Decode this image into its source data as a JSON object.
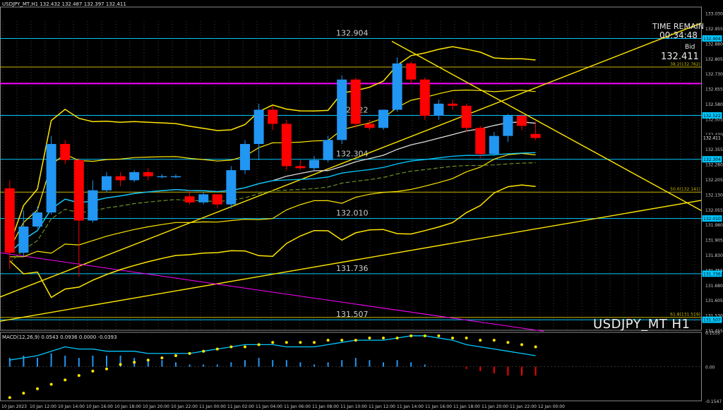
{
  "symbol_header": "USDJPY_MT,H1  132.432 132.487 132.397 132.411",
  "time_remain_title": "TIME REMAIN",
  "time_remain_value": "00:34:48",
  "bid_label": "Bid",
  "bid_value": "132.411",
  "watermark": "USDJPY_MT H1",
  "macd_label": "MACD(12,26,9) 0.0543 0.0936 0.0000 -0.0393",
  "colors": {
    "up": "#2196f3",
    "down": "#ff0000",
    "bb": "#ffe600",
    "cyan": "#00c8ff",
    "magenta": "#ff00ff",
    "fib": "#c8b400"
  },
  "level_labels": [
    {
      "text": "132.904",
      "price": 132.904
    },
    {
      "text": "132.522",
      "price": 132.522
    },
    {
      "text": "132.304",
      "price": 132.304
    },
    {
      "text": "132.010",
      "price": 132.01
    },
    {
      "text": "131.736",
      "price": 131.736
    },
    {
      "text": "131.507",
      "price": 131.507
    }
  ],
  "fib_labels": [
    {
      "text": "38.2(132.762)",
      "price": 132.762
    },
    {
      "text": "50.0(132.141)",
      "price": 132.141
    },
    {
      "text": "61.8(131.519)",
      "price": 131.519
    }
  ],
  "price_axis": [
    "133.030",
    "132.955",
    "132.880",
    "132.805",
    "132.730",
    "132.655",
    "132.580",
    "132.505",
    "132.430",
    "132.355",
    "132.280",
    "132.205",
    "132.130",
    "132.055",
    "131.980",
    "131.905",
    "131.830",
    "131.755",
    "131.680",
    "131.605",
    "131.530",
    "131.455"
  ],
  "axis_tags": [
    {
      "text": "132.904",
      "price": 132.904
    },
    {
      "text": "132.522",
      "price": 132.522
    },
    {
      "text": "132.411",
      "price": 132.411
    },
    {
      "text": "132.304",
      "price": 132.304
    },
    {
      "text": "132.010",
      "price": 132.01
    },
    {
      "text": "131.736",
      "price": 131.736
    },
    {
      "text": "131.507",
      "price": 131.507
    }
  ],
  "macd_axis": [
    "0.1555",
    "0.00",
    "-0.1547"
  ],
  "time_axis": [
    "10 Jan 2023",
    "10 Jan 12:00",
    "10 Jan 14:00",
    "10 Jan 16:00",
    "10 Jan 18:00",
    "10 Jan 20:00",
    "10 Jan 22:00",
    "11 Jan 00:00",
    "11 Jan 02:00",
    "11 Jan 04:00",
    "11 Jan 06:00",
    "11 Jan 08:00",
    "11 Jan 10:00",
    "11 Jan 12:00",
    "11 Jan 14:00",
    "11 Jan 16:00",
    "11 Jan 18:00",
    "11 Jan 20:00",
    "11 Jan 22:00",
    "12 Jan 00:00"
  ],
  "chart_data": {
    "type": "candlestick",
    "candles": [
      {
        "o": 132.16,
        "h": 132.2,
        "c": 131.84,
        "l": 131.76
      },
      {
        "o": 131.84,
        "h": 132.05,
        "c": 131.97,
        "l": 131.82
      },
      {
        "o": 131.97,
        "h": 132.07,
        "c": 132.04,
        "l": 131.96
      },
      {
        "o": 132.04,
        "h": 132.42,
        "c": 132.38,
        "l": 132.03
      },
      {
        "o": 132.38,
        "h": 132.4,
        "c": 132.3,
        "l": 132.28
      },
      {
        "o": 132.3,
        "h": 132.31,
        "c": 132.0,
        "l": 131.72
      },
      {
        "o": 132.0,
        "h": 132.2,
        "c": 132.15,
        "l": 131.99
      },
      {
        "o": 132.15,
        "h": 132.24,
        "c": 132.22,
        "l": 132.14
      },
      {
        "o": 132.22,
        "h": 132.24,
        "c": 132.2,
        "l": 132.17
      },
      {
        "o": 132.2,
        "h": 132.25,
        "c": 132.24,
        "l": 132.19
      },
      {
        "o": 132.24,
        "h": 132.26,
        "c": 132.22,
        "l": 132.2
      },
      {
        "o": 132.22,
        "h": 132.23,
        "c": 132.22,
        "l": 132.21
      },
      {
        "o": 132.22,
        "h": 132.23,
        "c": 132.22,
        "l": 132.21
      },
      {
        "o": 132.12,
        "h": 132.15,
        "c": 132.09,
        "l": 132.08
      },
      {
        "o": 132.09,
        "h": 132.14,
        "c": 132.13,
        "l": 132.08
      },
      {
        "o": 132.13,
        "h": 132.12,
        "c": 132.08,
        "l": 132.06
      },
      {
        "o": 132.08,
        "h": 132.27,
        "c": 132.25,
        "l": 132.06
      },
      {
        "o": 132.25,
        "h": 132.4,
        "c": 132.38,
        "l": 132.23
      },
      {
        "o": 132.38,
        "h": 132.58,
        "c": 132.55,
        "l": 132.3
      },
      {
        "o": 132.55,
        "h": 132.57,
        "c": 132.48,
        "l": 132.45
      },
      {
        "o": 132.48,
        "h": 132.5,
        "c": 132.27,
        "l": 132.25
      },
      {
        "o": 132.27,
        "h": 132.3,
        "c": 132.26,
        "l": 132.25
      },
      {
        "o": 132.26,
        "h": 132.32,
        "c": 132.3,
        "l": 132.25
      },
      {
        "o": 132.3,
        "h": 132.42,
        "c": 132.4,
        "l": 132.29
      },
      {
        "o": 132.4,
        "h": 132.72,
        "c": 132.7,
        "l": 132.38
      },
      {
        "o": 132.7,
        "h": 132.71,
        "c": 132.48,
        "l": 132.46
      },
      {
        "o": 132.48,
        "h": 132.5,
        "c": 132.46,
        "l": 132.45
      },
      {
        "o": 132.46,
        "h": 132.55,
        "c": 132.55,
        "l": 132.45
      },
      {
        "o": 132.55,
        "h": 132.81,
        "c": 132.78,
        "l": 132.54
      },
      {
        "o": 132.78,
        "h": 132.79,
        "c": 132.7,
        "l": 132.68
      },
      {
        "o": 132.7,
        "h": 132.71,
        "c": 132.52,
        "l": 132.5
      },
      {
        "o": 132.52,
        "h": 132.6,
        "c": 132.58,
        "l": 132.5
      },
      {
        "o": 132.58,
        "h": 132.6,
        "c": 132.57,
        "l": 132.55
      },
      {
        "o": 132.57,
        "h": 132.58,
        "c": 132.46,
        "l": 132.44
      },
      {
        "o": 132.46,
        "h": 132.47,
        "c": 132.33,
        "l": 132.31
      },
      {
        "o": 132.33,
        "h": 132.44,
        "c": 132.42,
        "l": 132.32
      },
      {
        "o": 132.42,
        "h": 132.53,
        "c": 132.52,
        "l": 132.39
      },
      {
        "o": 132.52,
        "h": 132.53,
        "c": 132.47,
        "l": 132.45
      },
      {
        "o": 132.43,
        "h": 132.49,
        "c": 132.41,
        "l": 132.4
      }
    ],
    "macd_hist": [
      0.04,
      0.05,
      0.04,
      0.06,
      0.05,
      0.04,
      0.05,
      0.05,
      0.05,
      0.04,
      0.03,
      0.03,
      0.02,
      0.01,
      0.01,
      0.01,
      0.02,
      0.03,
      0.04,
      0.03,
      0.03,
      0.02,
      0.01,
      0.02,
      0.03,
      0.04,
      0.03,
      0.02,
      0.03,
      0.02,
      0.01,
      0.0,
      0.0,
      -0.01,
      -0.02,
      -0.03,
      -0.04,
      -0.04,
      -0.04
    ],
    "macd_signal": [
      -0.14,
      -0.12,
      -0.1,
      -0.08,
      -0.06,
      -0.04,
      -0.02,
      -0.01,
      0.01,
      0.02,
      0.03,
      0.04,
      0.05,
      0.06,
      0.07,
      0.08,
      0.09,
      0.09,
      0.1,
      0.11,
      0.11,
      0.11,
      0.11,
      0.12,
      0.12,
      0.12,
      0.13,
      0.13,
      0.13,
      0.14,
      0.14,
      0.14,
      0.13,
      0.13,
      0.12,
      0.12,
      0.11,
      0.1,
      0.09
    ],
    "macd_line": [
      0.03,
      0.04,
      0.05,
      0.07,
      0.09,
      0.08,
      0.08,
      0.07,
      0.07,
      0.07,
      0.06,
      0.06,
      0.06,
      0.06,
      0.07,
      0.08,
      0.09,
      0.1,
      0.1,
      0.1,
      0.09,
      0.09,
      0.09,
      0.1,
      0.11,
      0.12,
      0.12,
      0.12,
      0.13,
      0.14,
      0.14,
      0.13,
      0.12,
      0.1,
      0.09,
      0.08,
      0.07,
      0.06,
      0.05
    ],
    "price_ylim": [
      131.455,
      133.06
    ],
    "macd_ylim": [
      -0.1547,
      0.1555
    ]
  }
}
